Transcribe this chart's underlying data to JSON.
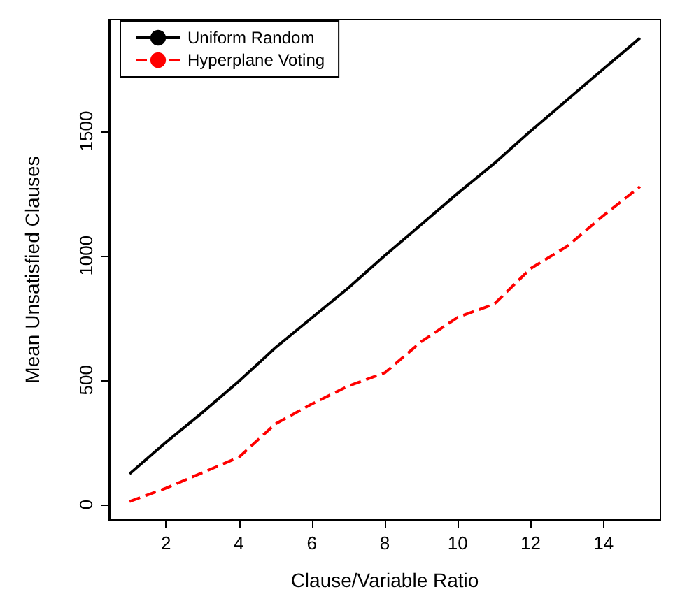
{
  "chart_data": {
    "type": "line",
    "xlabel": "Clause/Variable Ratio",
    "ylabel": "Mean Unsatisfied Clauses",
    "x": [
      1,
      2,
      3,
      4,
      5,
      6,
      7,
      8,
      9,
      10,
      11,
      12,
      13,
      14,
      15
    ],
    "series": [
      {
        "name": "Uniform Random",
        "color": "#000000",
        "line_style": "solid",
        "values": [
          123,
          250,
          370,
          495,
          630,
          750,
          870,
          1000,
          1125,
          1250,
          1370,
          1500,
          1625,
          1750,
          1874
        ]
      },
      {
        "name": "Hyperplane Voting",
        "color": "#ff0000",
        "line_style": "dashed",
        "values": [
          12,
          66,
          128,
          190,
          324,
          404,
          476,
          529,
          654,
          752,
          805,
          948,
          1037,
          1161,
          1277
        ]
      }
    ],
    "xlim": [
      0.44,
      15.56
    ],
    "xticks": [
      2,
      4,
      6,
      8,
      10,
      12,
      14
    ],
    "ylim": [
      -62,
      1948
    ],
    "yticks": [
      0,
      500,
      1000,
      1500
    ],
    "grid": false,
    "legend": "top left",
    "marker": "none"
  }
}
